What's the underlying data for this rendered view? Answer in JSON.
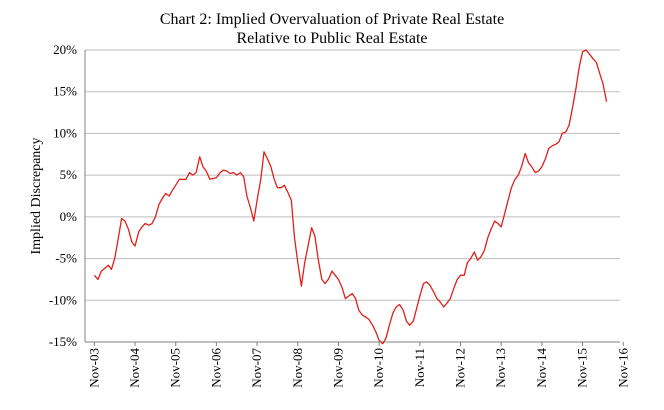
{
  "chart_data": {
    "type": "line",
    "title_line1": "Chart 2: Implied Overvaluation of Private Real Estate",
    "title_line2": "Relative to Public Real Estate",
    "xlabel": "",
    "ylabel": "Implied Discrepancy",
    "ylim": [
      -15,
      20
    ],
    "y_ticks": [
      "-15%",
      "-10%",
      "-5%",
      "0%",
      "5%",
      "10%",
      "15%",
      "20%"
    ],
    "y_tick_values": [
      -15,
      -10,
      -5,
      0,
      5,
      10,
      15,
      20
    ],
    "x_ticks": [
      "Nov-03",
      "Nov-04",
      "Nov-05",
      "Nov-06",
      "Nov-07",
      "Nov-08",
      "Nov-09",
      "Nov-10",
      "Nov-11",
      "Nov-12",
      "Nov-13",
      "Nov-14",
      "Nov-15",
      "Nov-16"
    ],
    "grid": "horizontal",
    "line_color": "#e0201b",
    "grid_color": "#bdbdbd",
    "series": [
      {
        "values": [
          [
            2003.83,
            -7.0
          ],
          [
            2003.92,
            -7.5
          ],
          [
            2004.0,
            -6.5
          ],
          [
            2004.08,
            -6.2
          ],
          [
            2004.17,
            -5.8
          ],
          [
            2004.25,
            -6.3
          ],
          [
            2004.33,
            -5.0
          ],
          [
            2004.42,
            -2.5
          ],
          [
            2004.5,
            -0.2
          ],
          [
            2004.58,
            -0.5
          ],
          [
            2004.67,
            -1.5
          ],
          [
            2004.75,
            -3.0
          ],
          [
            2004.83,
            -3.5
          ],
          [
            2004.92,
            -1.8
          ],
          [
            2005.0,
            -1.2
          ],
          [
            2005.08,
            -0.8
          ],
          [
            2005.17,
            -1.0
          ],
          [
            2005.25,
            -0.8
          ],
          [
            2005.33,
            0.0
          ],
          [
            2005.42,
            1.5
          ],
          [
            2005.5,
            2.2
          ],
          [
            2005.58,
            2.8
          ],
          [
            2005.67,
            2.5
          ],
          [
            2005.75,
            3.2
          ],
          [
            2005.83,
            3.8
          ],
          [
            2005.92,
            4.5
          ],
          [
            2006.0,
            4.5
          ],
          [
            2006.08,
            4.5
          ],
          [
            2006.17,
            5.3
          ],
          [
            2006.25,
            5.0
          ],
          [
            2006.33,
            5.3
          ],
          [
            2006.42,
            7.2
          ],
          [
            2006.5,
            6.0
          ],
          [
            2006.58,
            5.5
          ],
          [
            2006.67,
            4.5
          ],
          [
            2006.75,
            4.6
          ],
          [
            2006.83,
            4.7
          ],
          [
            2006.92,
            5.3
          ],
          [
            2007.0,
            5.6
          ],
          [
            2007.08,
            5.5
          ],
          [
            2007.17,
            5.2
          ],
          [
            2007.25,
            5.3
          ],
          [
            2007.33,
            5.0
          ],
          [
            2007.42,
            5.3
          ],
          [
            2007.5,
            4.8
          ],
          [
            2007.58,
            2.5
          ],
          [
            2007.67,
            1.0
          ],
          [
            2007.75,
            -0.5
          ],
          [
            2007.83,
            2.0
          ],
          [
            2007.92,
            4.5
          ],
          [
            2008.0,
            7.8
          ],
          [
            2008.08,
            7.0
          ],
          [
            2008.17,
            6.0
          ],
          [
            2008.25,
            4.5
          ],
          [
            2008.33,
            3.5
          ],
          [
            2008.42,
            3.5
          ],
          [
            2008.5,
            3.8
          ],
          [
            2008.58,
            3.0
          ],
          [
            2008.67,
            2.0
          ],
          [
            2008.75,
            -2.5
          ],
          [
            2008.83,
            -5.5
          ],
          [
            2008.92,
            -8.3
          ],
          [
            2009.0,
            -5.5
          ],
          [
            2009.08,
            -3.5
          ],
          [
            2009.17,
            -1.3
          ],
          [
            2009.25,
            -2.3
          ],
          [
            2009.33,
            -5.0
          ],
          [
            2009.42,
            -7.5
          ],
          [
            2009.5,
            -8.0
          ],
          [
            2009.58,
            -7.5
          ],
          [
            2009.67,
            -6.5
          ],
          [
            2009.75,
            -7.0
          ],
          [
            2009.83,
            -7.5
          ],
          [
            2009.92,
            -8.5
          ],
          [
            2010.0,
            -9.8
          ],
          [
            2010.08,
            -9.5
          ],
          [
            2010.17,
            -9.2
          ],
          [
            2010.25,
            -9.8
          ],
          [
            2010.33,
            -11.2
          ],
          [
            2010.42,
            -11.8
          ],
          [
            2010.5,
            -12.0
          ],
          [
            2010.58,
            -12.3
          ],
          [
            2010.67,
            -13.0
          ],
          [
            2010.75,
            -13.8
          ],
          [
            2010.83,
            -14.8
          ],
          [
            2010.92,
            -15.2
          ],
          [
            2011.0,
            -14.5
          ],
          [
            2011.08,
            -13.0
          ],
          [
            2011.17,
            -11.5
          ],
          [
            2011.25,
            -10.8
          ],
          [
            2011.33,
            -10.5
          ],
          [
            2011.42,
            -11.2
          ],
          [
            2011.5,
            -12.5
          ],
          [
            2011.58,
            -13.0
          ],
          [
            2011.67,
            -12.5
          ],
          [
            2011.75,
            -11.0
          ],
          [
            2011.83,
            -9.5
          ],
          [
            2011.92,
            -8.0
          ],
          [
            2012.0,
            -7.8
          ],
          [
            2012.08,
            -8.2
          ],
          [
            2012.17,
            -9.0
          ],
          [
            2012.25,
            -9.8
          ],
          [
            2012.33,
            -10.2
          ],
          [
            2012.42,
            -10.8
          ],
          [
            2012.5,
            -10.3
          ],
          [
            2012.58,
            -9.8
          ],
          [
            2012.67,
            -8.5
          ],
          [
            2012.75,
            -7.5
          ],
          [
            2012.83,
            -7.0
          ],
          [
            2012.92,
            -7.0
          ],
          [
            2013.0,
            -5.5
          ],
          [
            2013.08,
            -5.0
          ],
          [
            2013.17,
            -4.2
          ],
          [
            2013.25,
            -5.2
          ],
          [
            2013.33,
            -4.8
          ],
          [
            2013.42,
            -4.0
          ],
          [
            2013.5,
            -2.5
          ],
          [
            2013.58,
            -1.5
          ],
          [
            2013.67,
            -0.5
          ],
          [
            2013.75,
            -0.8
          ],
          [
            2013.83,
            -1.2
          ],
          [
            2013.92,
            0.5
          ],
          [
            2014.0,
            2.0
          ],
          [
            2014.08,
            3.5
          ],
          [
            2014.17,
            4.5
          ],
          [
            2014.25,
            5.0
          ],
          [
            2014.33,
            6.0
          ],
          [
            2014.42,
            7.6
          ],
          [
            2014.5,
            6.5
          ],
          [
            2014.58,
            6.0
          ],
          [
            2014.67,
            5.3
          ],
          [
            2014.75,
            5.5
          ],
          [
            2014.83,
            6.0
          ],
          [
            2014.92,
            7.0
          ],
          [
            2015.0,
            8.2
          ],
          [
            2015.08,
            8.5
          ],
          [
            2015.17,
            8.7
          ],
          [
            2015.25,
            9.0
          ],
          [
            2015.33,
            10.0
          ],
          [
            2015.42,
            10.2
          ],
          [
            2015.5,
            11.0
          ],
          [
            2015.58,
            13.0
          ],
          [
            2015.67,
            15.5
          ],
          [
            2015.75,
            18.0
          ],
          [
            2015.83,
            19.8
          ],
          [
            2015.92,
            20.0
          ],
          [
            2016.0,
            19.5
          ],
          [
            2016.08,
            19.0
          ],
          [
            2016.17,
            18.5
          ],
          [
            2016.25,
            17.2
          ],
          [
            2016.33,
            16.0
          ],
          [
            2016.42,
            13.8
          ]
        ]
      }
    ]
  }
}
